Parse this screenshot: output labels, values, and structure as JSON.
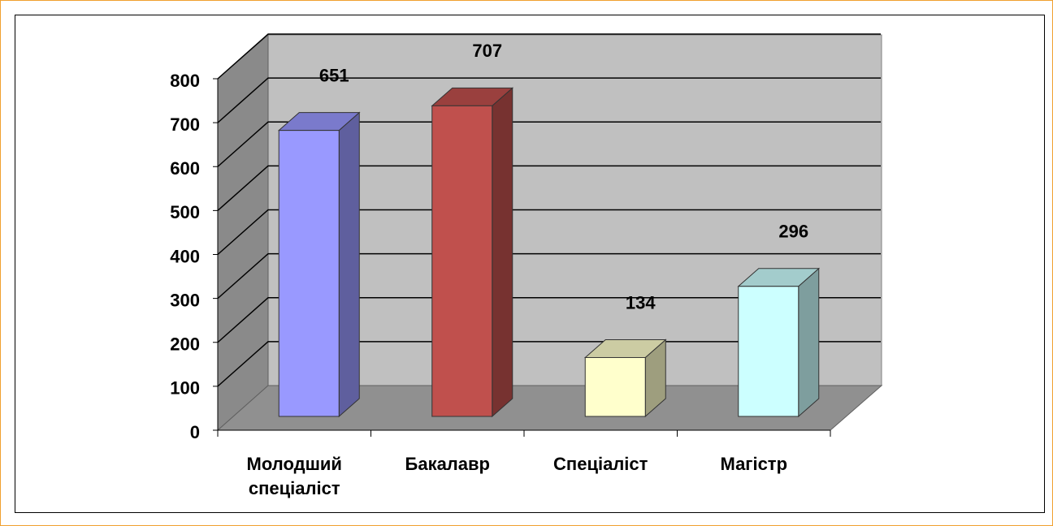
{
  "chart_data": {
    "type": "bar3d",
    "categories": [
      "Молодший спеціаліст",
      "Бакалавр",
      "Спеціаліст",
      "Магістр"
    ],
    "values": [
      651,
      707,
      134,
      296
    ],
    "colors": [
      "#9999ff",
      "#c0504d",
      "#ffffcc",
      "#ccffff"
    ],
    "ylim": [
      0,
      800
    ],
    "yticks": [
      0,
      100,
      200,
      300,
      400,
      500,
      600,
      700,
      800
    ],
    "grid": true
  }
}
